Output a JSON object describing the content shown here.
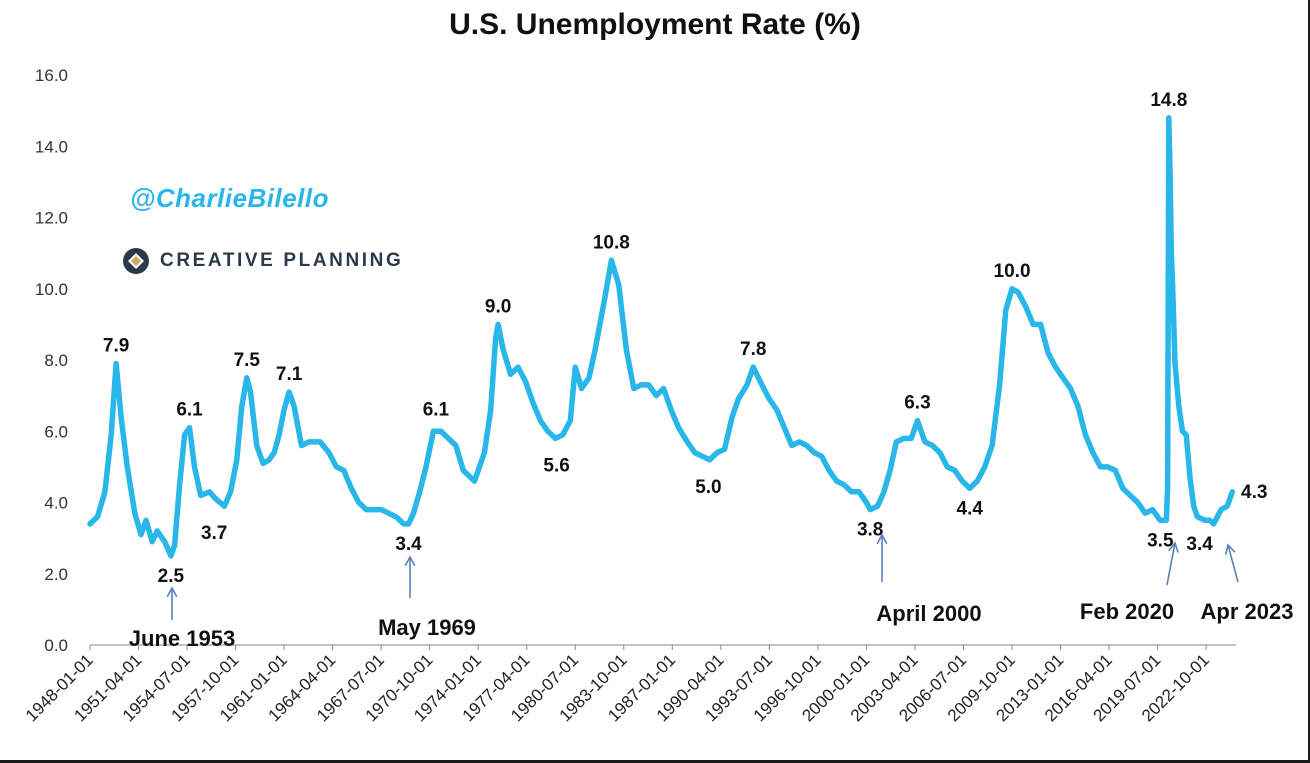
{
  "chart_data": {
    "type": "line",
    "title": "U.S. Unemployment Rate (%)",
    "xlabel": "",
    "ylabel": "",
    "ylim": [
      0,
      16
    ],
    "yticks": [
      "0.0",
      "2.0",
      "4.0",
      "6.0",
      "8.0",
      "10.0",
      "12.0",
      "14.0",
      "16.0"
    ],
    "x_tick_labels": [
      "1948-01-01",
      "1951-04-01",
      "1954-07-01",
      "1957-10-01",
      "1961-01-01",
      "1964-04-01",
      "1967-07-01",
      "1970-10-01",
      "1974-01-01",
      "1977-04-01",
      "1980-07-01",
      "1983-10-01",
      "1987-01-01",
      "1990-04-01",
      "1993-07-01",
      "1996-10-01",
      "2000-01-01",
      "2003-04-01",
      "2006-07-01",
      "2009-10-01",
      "2013-01-01",
      "2016-04-01",
      "2019-07-01",
      "2022-10-01"
    ],
    "grid": false,
    "line_color": "#29b6e8",
    "series": [
      {
        "x": [
          "1948-01",
          "1948-07",
          "1949-01",
          "1949-06",
          "1949-10",
          "1950-02",
          "1950-07",
          "1951-01",
          "1951-06",
          "1951-10",
          "1952-03",
          "1952-07",
          "1953-01",
          "1953-06",
          "1953-09",
          "1954-01",
          "1954-05",
          "1954-09",
          "1955-01",
          "1955-06",
          "1956-01",
          "1956-06",
          "1957-01",
          "1957-06",
          "1957-11",
          "1958-03",
          "1958-07",
          "1958-10",
          "1959-03",
          "1959-08",
          "1960-01",
          "1960-05",
          "1960-09",
          "1961-01",
          "1961-05",
          "1961-09",
          "1962-03",
          "1962-09",
          "1963-06",
          "1964-01",
          "1964-07",
          "1965-01",
          "1965-07",
          "1966-01",
          "1966-07",
          "1967-01",
          "1967-07",
          "1968-01",
          "1968-07",
          "1969-01",
          "1969-05",
          "1969-09",
          "1970-02",
          "1970-07",
          "1971-01",
          "1971-07",
          "1972-01",
          "1972-07",
          "1973-01",
          "1973-10",
          "1974-06",
          "1974-11",
          "1975-03",
          "1975-05",
          "1975-09",
          "1976-03",
          "1976-09",
          "1977-03",
          "1977-09",
          "1978-03",
          "1978-09",
          "1979-03",
          "1979-09",
          "1980-03",
          "1980-07",
          "1980-12",
          "1981-06",
          "1981-11",
          "1982-06",
          "1982-12",
          "1983-06",
          "1983-12",
          "1984-06",
          "1984-12",
          "1985-06",
          "1985-12",
          "1986-06",
          "1986-12",
          "1987-06",
          "1988-01",
          "1988-07",
          "1989-01",
          "1989-07",
          "1990-01",
          "1990-07",
          "1991-01",
          "1991-06",
          "1992-01",
          "1992-06",
          "1993-01",
          "1993-07",
          "1994-01",
          "1994-07",
          "1995-01",
          "1995-07",
          "1996-01",
          "1996-07",
          "1997-01",
          "1997-07",
          "1998-01",
          "1998-07",
          "1999-01",
          "1999-07",
          "2000-01",
          "2000-04",
          "2000-10",
          "2001-03",
          "2001-08",
          "2002-01",
          "2002-07",
          "2003-01",
          "2003-06",
          "2003-12",
          "2004-06",
          "2004-12",
          "2005-06",
          "2005-12",
          "2006-06",
          "2006-12",
          "2007-06",
          "2007-12",
          "2008-06",
          "2008-12",
          "2009-05",
          "2009-10",
          "2010-03",
          "2010-09",
          "2011-03",
          "2011-09",
          "2012-03",
          "2012-09",
          "2013-03",
          "2013-09",
          "2014-03",
          "2014-09",
          "2015-03",
          "2015-09",
          "2016-03",
          "2016-09",
          "2017-03",
          "2017-09",
          "2018-03",
          "2018-09",
          "2019-03",
          "2019-09",
          "2020-02",
          "2020-03",
          "2020-04",
          "2020-05",
          "2020-06",
          "2020-07",
          "2020-09",
          "2020-12",
          "2021-03",
          "2021-06",
          "2021-09",
          "2021-12",
          "2022-03",
          "2022-09",
          "2023-01",
          "2023-04",
          "2023-10",
          "2024-03",
          "2024-07"
        ],
        "values": [
          3.4,
          3.6,
          4.3,
          5.9,
          7.9,
          6.4,
          5.0,
          3.7,
          3.1,
          3.5,
          2.9,
          3.2,
          2.9,
          2.5,
          2.8,
          4.5,
          5.9,
          6.1,
          5.0,
          4.2,
          4.3,
          4.1,
          3.9,
          4.3,
          5.2,
          6.7,
          7.5,
          7.1,
          5.6,
          5.1,
          5.2,
          5.4,
          5.9,
          6.6,
          7.1,
          6.7,
          5.6,
          5.7,
          5.7,
          5.4,
          5.0,
          4.9,
          4.4,
          4.0,
          3.8,
          3.8,
          3.8,
          3.7,
          3.6,
          3.4,
          3.4,
          3.7,
          4.3,
          5.0,
          6.0,
          6.0,
          5.8,
          5.6,
          4.9,
          4.6,
          5.4,
          6.6,
          8.6,
          9.0,
          8.3,
          7.6,
          7.8,
          7.4,
          6.8,
          6.3,
          6.0,
          5.8,
          5.9,
          6.3,
          7.8,
          7.2,
          7.5,
          8.3,
          9.6,
          10.8,
          10.1,
          8.3,
          7.2,
          7.3,
          7.3,
          7.0,
          7.2,
          6.6,
          6.1,
          5.7,
          5.4,
          5.3,
          5.2,
          5.4,
          5.5,
          6.4,
          6.9,
          7.3,
          7.8,
          7.3,
          6.9,
          6.6,
          6.1,
          5.6,
          5.7,
          5.6,
          5.4,
          5.3,
          4.9,
          4.6,
          4.5,
          4.3,
          4.3,
          4.0,
          3.8,
          3.9,
          4.3,
          4.9,
          5.7,
          5.8,
          5.8,
          6.3,
          5.7,
          5.6,
          5.4,
          5.0,
          4.9,
          4.6,
          4.4,
          4.6,
          5.0,
          5.6,
          7.3,
          9.4,
          10.0,
          9.9,
          9.5,
          9.0,
          9.0,
          8.2,
          7.8,
          7.5,
          7.2,
          6.7,
          5.9,
          5.4,
          5.0,
          5.0,
          4.9,
          4.4,
          4.2,
          4.0,
          3.7,
          3.8,
          3.5,
          3.5,
          4.4,
          14.8,
          13.2,
          11.0,
          10.2,
          7.9,
          6.7,
          6.0,
          5.9,
          4.7,
          3.9,
          3.6,
          3.5,
          3.5,
          3.4,
          3.8,
          3.9,
          4.3
        ]
      }
    ],
    "data_labels": [
      {
        "text": "7.9",
        "x": "1949-10",
        "y": 7.9
      },
      {
        "text": "2.5",
        "x": "1953-06",
        "y": 2.5
      },
      {
        "text": "6.1",
        "x": "1954-09",
        "y": 6.1
      },
      {
        "text": "3.7",
        "x": "1956-08",
        "y": 3.7
      },
      {
        "text": "7.5",
        "x": "1958-07",
        "y": 7.5
      },
      {
        "text": "7.1",
        "x": "1961-05",
        "y": 7.1
      },
      {
        "text": "3.4",
        "x": "1969-05",
        "y": 3.4
      },
      {
        "text": "6.1",
        "x": "1971-03",
        "y": 6.1
      },
      {
        "text": "9.0",
        "x": "1975-05",
        "y": 9.0
      },
      {
        "text": "5.6",
        "x": "1979-04",
        "y": 5.6
      },
      {
        "text": "10.8",
        "x": "1982-12",
        "y": 10.8
      },
      {
        "text": "5.0",
        "x": "1989-06",
        "y": 5.0
      },
      {
        "text": "7.8",
        "x": "1992-06",
        "y": 7.8
      },
      {
        "text": "3.8",
        "x": "2000-04",
        "y": 3.8
      },
      {
        "text": "6.3",
        "x": "2003-06",
        "y": 6.3
      },
      {
        "text": "4.4",
        "x": "2006-12",
        "y": 4.4
      },
      {
        "text": "10.0",
        "x": "2009-10",
        "y": 10.0
      },
      {
        "text": "14.8",
        "x": "2020-04",
        "y": 14.8
      },
      {
        "text": "3.5",
        "x": "2020-02",
        "y": 3.5
      },
      {
        "text": "3.4",
        "x": "2023-04",
        "y": 3.4
      },
      {
        "text": "4.3",
        "x": "2024-07",
        "y": 4.3
      }
    ],
    "annotations": [
      {
        "text": "June 1953",
        "x": "1953-06"
      },
      {
        "text": "May 1969",
        "x": "1969-05"
      },
      {
        "text": "April 2000",
        "x": "2000-04"
      },
      {
        "text": "Feb 2020",
        "x": "2020-02"
      },
      {
        "text": "Apr 2023",
        "x": "2023-04"
      }
    ]
  },
  "watermark": "@CharlieBilello",
  "brand": {
    "name": "CREATIVE PLANNING",
    "icon": "creative-planning-logo-icon",
    "colors": [
      "#2b3a4a",
      "#c9a86a"
    ]
  }
}
